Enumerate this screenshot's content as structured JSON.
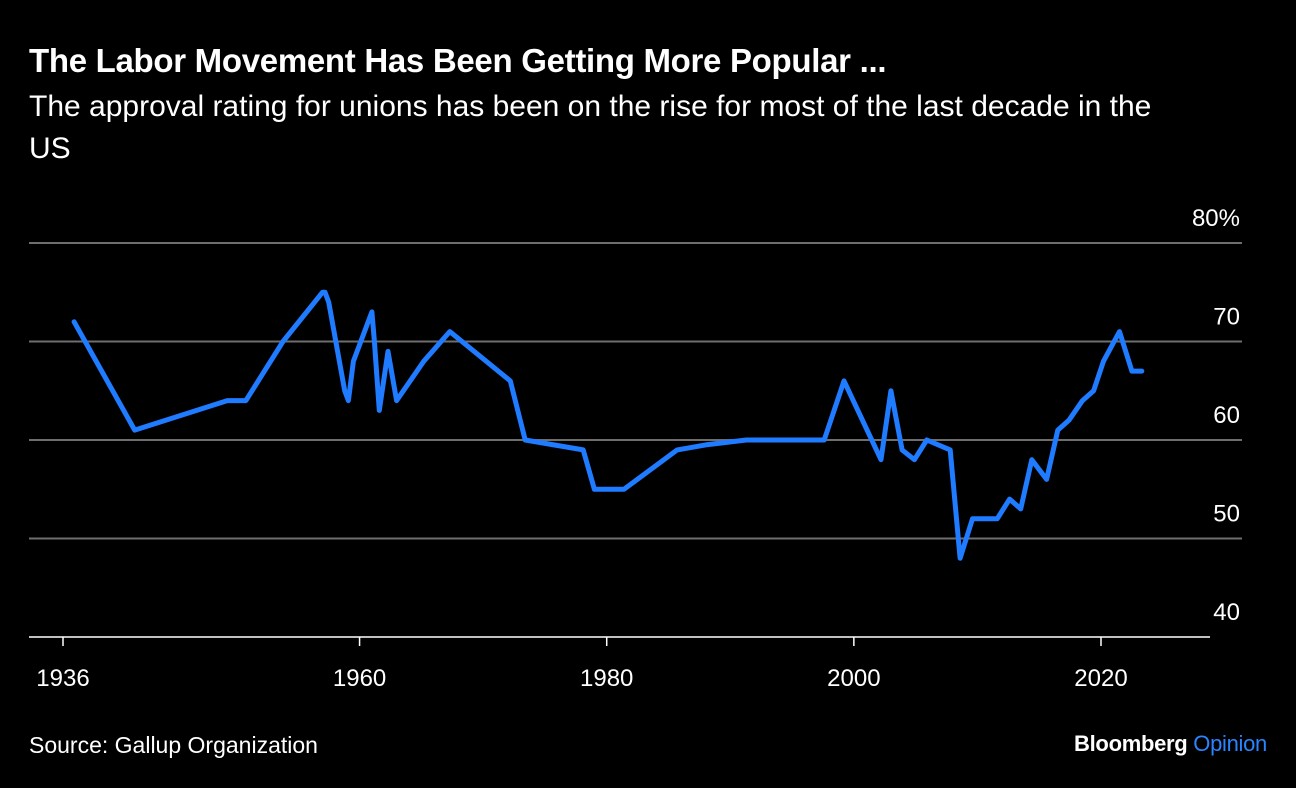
{
  "header": {
    "title": "The Labor Movement Has Been Getting More Popular ...",
    "subtitle": "The approval rating for unions has been on the rise for most of the last decade in the US"
  },
  "footer": {
    "source": "Source: Gallup Organization",
    "brand_main": "Bloomberg",
    "brand_sub": "Opinion"
  },
  "colors": {
    "line": "#1f7bff",
    "grid": "#6e6e6e",
    "text": "#ffffff",
    "background": "#000000"
  },
  "chart_data": {
    "type": "line",
    "title": "The Labor Movement Has Been Getting More Popular ...",
    "subtitle": "The approval rating for unions has been on the rise for most of the last decade in the US",
    "xlim": [
      1936,
      2030
    ],
    "ylim": [
      40,
      80
    ],
    "x_ticks": [
      {
        "value": 1936,
        "label": "1936"
      },
      {
        "value": 1960,
        "label": "1960"
      },
      {
        "value": 1980,
        "label": "1980"
      },
      {
        "value": 2000,
        "label": "2000"
      },
      {
        "value": 2020,
        "label": "2020"
      }
    ],
    "y_ticks": [
      {
        "value": 40,
        "label": "40"
      },
      {
        "value": 50,
        "label": "50"
      },
      {
        "value": 60,
        "label": "60"
      },
      {
        "value": 70,
        "label": "70"
      },
      {
        "value": 80,
        "label": "80%"
      }
    ],
    "grid": true,
    "y_axis_side": "right",
    "series": [
      {
        "x": [
          1936.9,
          1941.8,
          1949.3,
          1950.8,
          1953.8,
          1957,
          1957.2,
          1957.5,
          1958.8,
          1959.1,
          1959.5,
          1961,
          1961.2,
          1961.6,
          1962.3,
          1963,
          1965.2,
          1967.3,
          1972.2,
          1973.4,
          1978.1,
          1979,
          1981.4,
          1985.7,
          1988,
          1991.3,
          1997.6,
          1999.2,
          2002.2,
          2003,
          2003.9,
          2004.9,
          2005.9,
          2007.8,
          2008.6,
          2009.6,
          2010.6,
          2011.6,
          2012.6,
          2013.5,
          2014.4,
          2015.6,
          2016.5,
          2017.4,
          2018.5,
          2019.4,
          2020.2,
          2021.5,
          2022.5,
          2023.3
        ],
        "values": [
          72,
          61,
          64,
          64,
          70,
          75,
          75,
          74,
          65,
          64,
          68,
          73,
          70,
          63,
          69,
          64,
          68,
          71,
          66,
          60,
          59,
          55,
          55,
          59,
          59.5,
          60,
          60,
          66,
          58,
          65,
          59,
          58,
          60,
          59,
          48,
          52,
          52,
          52,
          54,
          53,
          58,
          56,
          61,
          62,
          64,
          65,
          68,
          71,
          67,
          67
        ]
      }
    ]
  }
}
